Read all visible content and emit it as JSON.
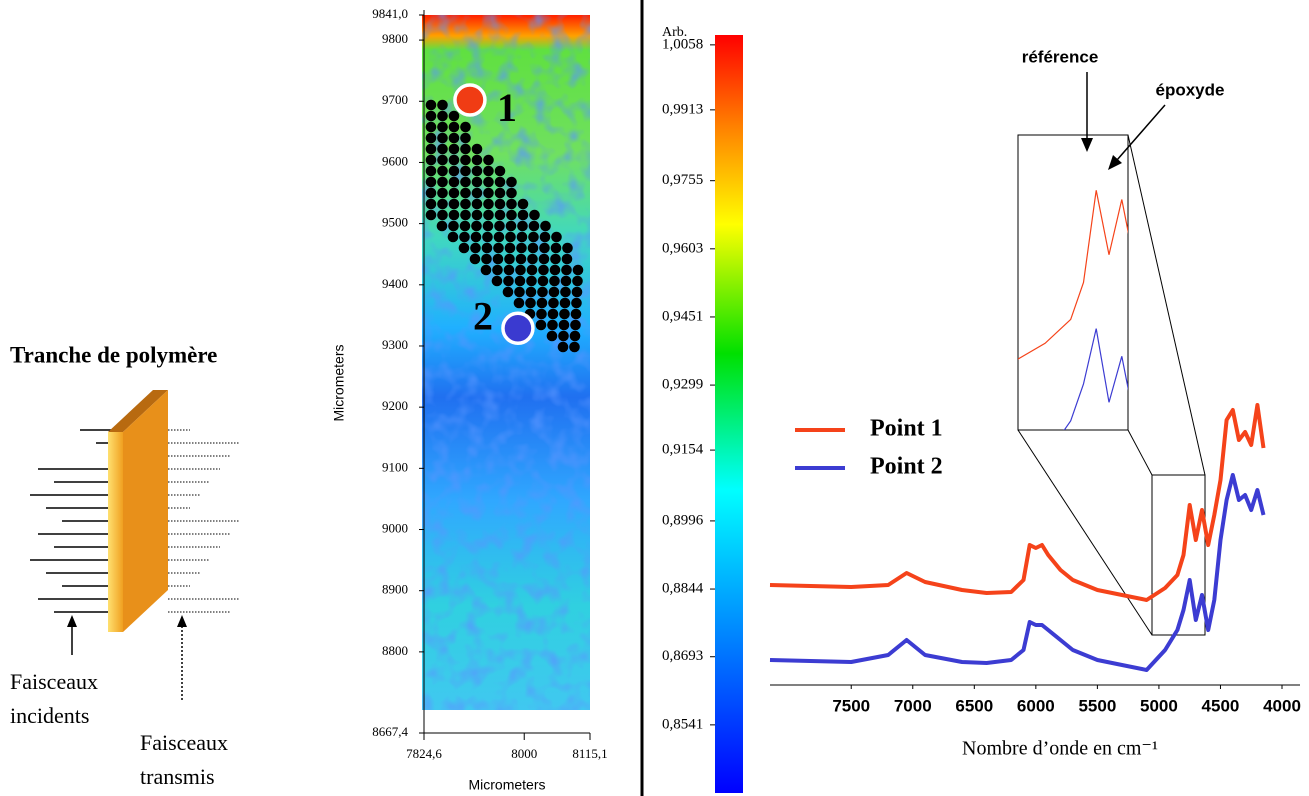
{
  "diagram": {
    "title": "Tranche de polymère",
    "incident_label": [
      "Faisceaux",
      "incidents"
    ],
    "transmitted_label": [
      "Faisceaux",
      "transmis"
    ]
  },
  "chart_data": [
    {
      "type": "heatmap",
      "x_label": "Micrometers",
      "y_label": "Micrometers",
      "xlim": [
        7824.6,
        8115.1
      ],
      "xticks": [
        {
          "value": 7824.6,
          "label": "7824,6"
        },
        8000,
        {
          "value": 8115.1,
          "label": "8115,1"
        }
      ],
      "ylim": [
        8667.4,
        9841
      ],
      "yticks": [
        {
          "value": 8667.4,
          "label": "8667,4"
        },
        8800,
        8900,
        9000,
        9100,
        9200,
        9300,
        9400,
        9500,
        9600,
        9700,
        9800,
        {
          "value": 9841,
          "label": "9841,0"
        }
      ],
      "colorbar": {
        "label": "Arb.",
        "lim": [
          0.8389,
          1.008
        ],
        "ticks": [
          {
            "value": 1.0058,
            "label": "1,0058"
          },
          {
            "value": 0.9913,
            "label": "0,9913"
          },
          {
            "value": 0.9755,
            "label": "0,9755"
          },
          {
            "value": 0.9603,
            "label": "0,9603"
          },
          {
            "value": 0.9451,
            "label": "0,9451"
          },
          {
            "value": 0.9299,
            "label": "0,9299"
          },
          {
            "value": 0.9154,
            "label": "0,9154"
          },
          {
            "value": 0.8996,
            "label": "0,8996"
          },
          {
            "value": 0.8844,
            "label": "0,8844"
          },
          {
            "value": 0.8693,
            "label": "0,8693"
          },
          {
            "value": 0.8541,
            "label": "0,8541"
          }
        ]
      },
      "points": [
        {
          "label": "1",
          "x": 7905,
          "y": 9702,
          "color": "#f03c14"
        },
        {
          "label": "2",
          "x": 7989,
          "y": 9329,
          "color": "#3a3ad0"
        }
      ]
    },
    {
      "type": "line",
      "x_label": "Nombre d’onde  en cm⁻¹",
      "xlim": [
        8160,
        3935
      ],
      "xticks": [
        7500,
        7000,
        6500,
        6000,
        5500,
        5000,
        4500,
        4000
      ],
      "ylim": [
        0,
        3
      ],
      "x": [
        8160,
        7500,
        7200,
        7050,
        6900,
        6600,
        6400,
        6200,
        6100,
        6050,
        6000,
        5950,
        5900,
        5800,
        5700,
        5500,
        5300,
        5100,
        4950,
        4850,
        4800,
        4750,
        4700,
        4650,
        4600,
        4550,
        4500,
        4450,
        4400,
        4350,
        4300,
        4250,
        4200,
        4150
      ],
      "series": [
        {
          "name": "Point 1",
          "color": "#f5431a",
          "values": [
            1.05,
            1.03,
            1.05,
            1.17,
            1.08,
            1.0,
            0.97,
            0.98,
            1.1,
            1.45,
            1.42,
            1.45,
            1.35,
            1.2,
            1.1,
            1.0,
            0.95,
            0.9,
            1.02,
            1.15,
            1.35,
            1.85,
            1.5,
            1.8,
            1.45,
            1.75,
            2.1,
            2.7,
            2.8,
            2.5,
            2.58,
            2.45,
            2.85,
            2.42
          ]
        },
        {
          "name": "Point 2",
          "color": "#3c3cd2",
          "values": [
            0.3,
            0.28,
            0.35,
            0.5,
            0.35,
            0.28,
            0.27,
            0.3,
            0.4,
            0.68,
            0.65,
            0.65,
            0.6,
            0.5,
            0.4,
            0.3,
            0.25,
            0.2,
            0.4,
            0.6,
            0.8,
            1.1,
            0.7,
            0.95,
            0.6,
            0.9,
            1.5,
            1.9,
            2.15,
            1.9,
            1.95,
            1.8,
            2.0,
            1.75
          ]
        }
      ],
      "annotations": [
        "référence",
        "époxyde"
      ]
    }
  ]
}
